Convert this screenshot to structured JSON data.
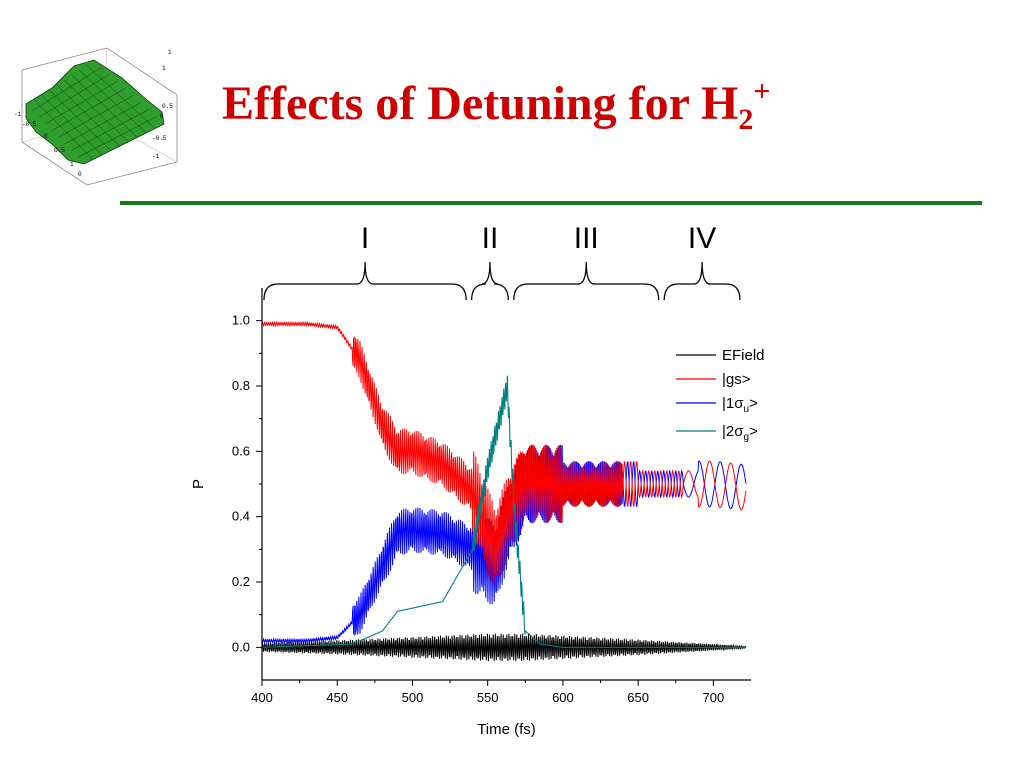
{
  "slide": {
    "title_main": "Effects of Detuning for H",
    "title_sub": "2",
    "title_sup": "+",
    "accent_color": "#cc0000",
    "rule_color": "#1a7a1a"
  },
  "logo": {
    "description": "3d-surface-plot-icon",
    "tick_labels": [
      "-1",
      "-0.5",
      "0",
      "0.5",
      "1",
      "1",
      "0.5",
      "0",
      "-0.5",
      "-1",
      "0",
      "1"
    ]
  },
  "chart_data": {
    "type": "line",
    "xlabel": "Time (fs)",
    "ylabel": "P",
    "xlim": [
      400,
      725
    ],
    "ylim": [
      -0.1,
      1.1
    ],
    "x_ticks": [
      400,
      450,
      500,
      550,
      600,
      650,
      700
    ],
    "y_ticks": [
      0.0,
      0.2,
      0.4,
      0.6,
      0.8,
      1.0
    ],
    "x_tick_labels": [
      "400",
      "450",
      "500",
      "550",
      "600",
      "650",
      "700"
    ],
    "y_tick_labels": [
      "0.0",
      "0.2",
      "0.4",
      "0.6",
      "0.8",
      "1.0"
    ],
    "legend_position": "top-right",
    "series": [
      {
        "name": "EField",
        "color": "#000000",
        "x": [
          400,
          450,
          500,
          550,
          575,
          600,
          650,
          700,
          725
        ],
        "y_envelope": [
          0.014,
          0.022,
          0.032,
          0.042,
          0.042,
          0.036,
          0.024,
          0.01,
          0.002
        ]
      },
      {
        "name": "|gs>",
        "color": "#ff0000",
        "x": [
          400,
          430,
          450,
          465,
          480,
          490,
          500,
          520,
          540,
          555,
          565,
          575,
          600,
          650,
          700,
          720
        ],
        "y_center": [
          0.99,
          0.99,
          0.98,
          0.88,
          0.68,
          0.6,
          0.6,
          0.56,
          0.48,
          0.3,
          0.42,
          0.5,
          0.5,
          0.5,
          0.5,
          0.49
        ]
      },
      {
        "name": "|1σu>",
        "color": "#0000ff",
        "x": [
          400,
          430,
          450,
          465,
          480,
          490,
          500,
          520,
          540,
          555,
          565,
          575,
          600,
          650,
          700,
          720
        ],
        "y_center": [
          0.02,
          0.02,
          0.03,
          0.1,
          0.25,
          0.35,
          0.36,
          0.35,
          0.3,
          0.25,
          0.4,
          0.5,
          0.5,
          0.5,
          0.5,
          0.49
        ]
      },
      {
        "name": "|2σg>",
        "color": "#008080",
        "x": [
          400,
          460,
          480,
          490,
          500,
          520,
          540,
          550,
          558,
          563,
          568,
          575,
          585,
          600,
          650,
          720
        ],
        "y": [
          0.0,
          0.01,
          0.05,
          0.11,
          0.12,
          0.14,
          0.3,
          0.55,
          0.7,
          0.8,
          0.4,
          0.05,
          0.01,
          0.0,
          0.0,
          0.0
        ]
      }
    ],
    "legend": {
      "entries": [
        {
          "name": "EField",
          "main": "EField",
          "sub": "",
          "tail": ""
        },
        {
          "name": "|gs>",
          "main": "|gs>",
          "sub": "",
          "tail": ""
        },
        {
          "name": "|1σu>",
          "main": "|1σ",
          "sub": "u",
          "tail": ">"
        },
        {
          "name": "|2σg>",
          "main": "|2σ",
          "sub": "g",
          "tail": ">"
        }
      ]
    },
    "regions": [
      {
        "label": "I",
        "x_start": 400,
        "x_end": 537
      },
      {
        "label": "II",
        "x_start": 538,
        "x_end": 565
      },
      {
        "label": "III",
        "x_start": 566,
        "x_end": 665
      },
      {
        "label": "IV",
        "x_start": 666,
        "x_end": 719
      }
    ]
  }
}
